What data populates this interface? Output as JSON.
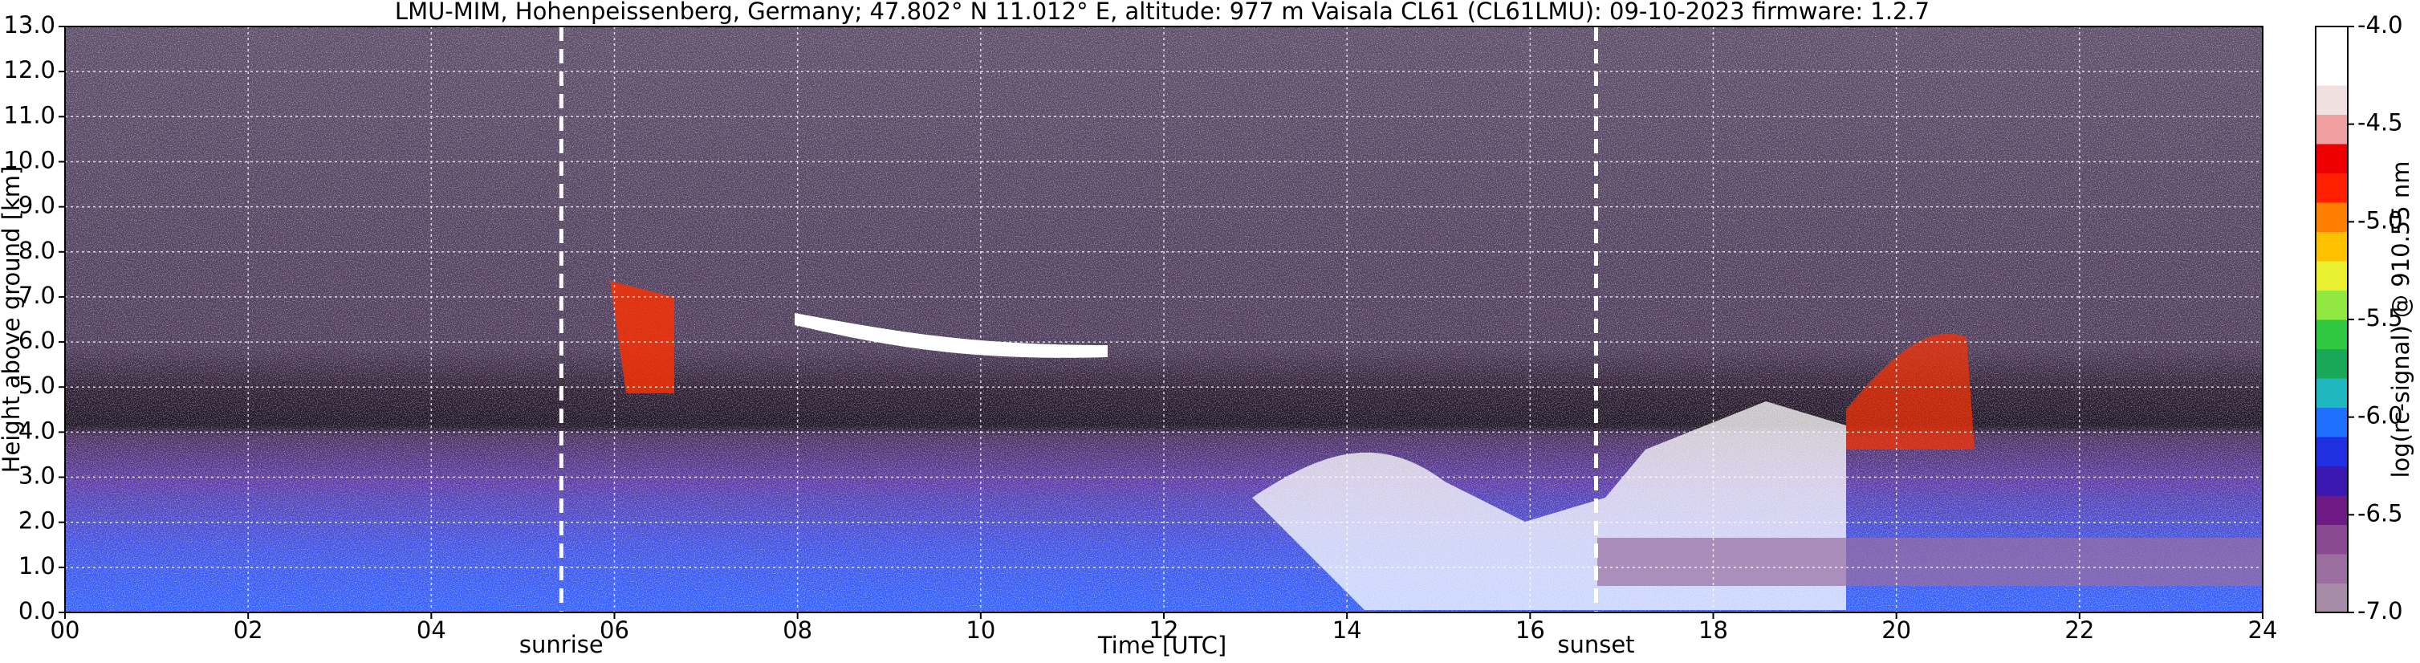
{
  "chart_data": {
    "type": "heatmap",
    "title": "LMU-MIM, Hohenpeissenberg, Germany; 47.802° N 11.012° E, altitude: 977 m    Vaisala CL61 (CL61LMU): 09-10-2023    firmware: 1.2.7",
    "x_label": "Time [UTC]",
    "y_label": "Height above ground [km]",
    "colorbar_label": "log(rc-signal) @ 910.55 nm",
    "xlim": [
      0,
      24
    ],
    "xticks": [
      {
        "value": 0,
        "label": "00"
      },
      {
        "value": 2,
        "label": "02"
      },
      {
        "value": 4,
        "label": "04"
      },
      {
        "value": 6,
        "label": "06"
      },
      {
        "value": 8,
        "label": "08"
      },
      {
        "value": 10,
        "label": "10"
      },
      {
        "value": 12,
        "label": "12"
      },
      {
        "value": 14,
        "label": "14"
      },
      {
        "value": 16,
        "label": "16"
      },
      {
        "value": 18,
        "label": "18"
      },
      {
        "value": 20,
        "label": "20"
      },
      {
        "value": 22,
        "label": "22"
      },
      {
        "value": 24,
        "label": "24"
      }
    ],
    "ylim": [
      0,
      13
    ],
    "yticks": [
      {
        "value": 0,
        "label": "0.0"
      },
      {
        "value": 1,
        "label": "1.0"
      },
      {
        "value": 2,
        "label": "2.0"
      },
      {
        "value": 3,
        "label": "3.0"
      },
      {
        "value": 4,
        "label": "4.0"
      },
      {
        "value": 5,
        "label": "5.0"
      },
      {
        "value": 6,
        "label": "6.0"
      },
      {
        "value": 7,
        "label": "7.0"
      },
      {
        "value": 8,
        "label": "8.0"
      },
      {
        "value": 9,
        "label": "9.0"
      },
      {
        "value": 10,
        "label": "10.0"
      },
      {
        "value": 11,
        "label": "11.0"
      },
      {
        "value": 12,
        "label": "12.0"
      },
      {
        "value": 13,
        "label": "13.0"
      }
    ],
    "clim": [
      -7,
      -4
    ],
    "cticks": [
      {
        "value": -7,
        "label": "-7.0"
      },
      {
        "value": -6.5,
        "label": "-6.5"
      },
      {
        "value": -6,
        "label": "-6.0"
      },
      {
        "value": -5.5,
        "label": "-5.5"
      },
      {
        "value": -5,
        "label": "-5.0"
      },
      {
        "value": -4.5,
        "label": "-4.5"
      },
      {
        "value": -4,
        "label": "-4.0"
      }
    ],
    "colormap": [
      "#a68ca6",
      "#9a6e9e",
      "#8a4a92",
      "#6e1a84",
      "#3a18b0",
      "#2030e0",
      "#2070ff",
      "#20b8c0",
      "#18a858",
      "#30c840",
      "#90e840",
      "#e8f030",
      "#ffc000",
      "#ff8000",
      "#ff2000",
      "#ee0000",
      "#f0a0a0",
      "#f0e0e0",
      "#ffffff",
      "#ffffff"
    ],
    "grid": true,
    "annotations": [
      {
        "text": "sunrise",
        "x": 5.42
      },
      {
        "text": "sunset",
        "x": 16.72
      }
    ]
  }
}
